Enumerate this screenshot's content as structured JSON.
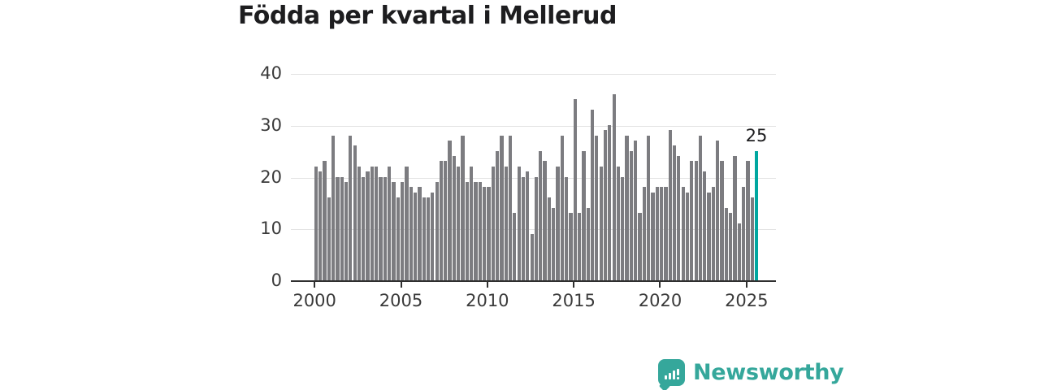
{
  "title": "Födda per kvartal i Mellerud",
  "chart_data": {
    "type": "bar",
    "title": "Födda per kvartal i Mellerud",
    "description": "Births per quarter in Mellerud, one bar per quarter from 2000 Q1 to 2025 Q3, last bar highlighted",
    "start_year": 2000,
    "unit": "quarter",
    "x_tick_labels": [
      "2000",
      "2005",
      "2010",
      "2015",
      "2020",
      "2025"
    ],
    "y_ticks": [
      0,
      10,
      20,
      30,
      40
    ],
    "ylim": [
      0,
      40
    ],
    "grid": true,
    "legend": "none",
    "values": [
      22,
      21,
      23,
      16,
      28,
      20,
      20,
      19,
      28,
      26,
      22,
      20,
      21,
      22,
      22,
      20,
      20,
      22,
      19,
      16,
      19,
      22,
      18,
      17,
      18,
      16,
      16,
      17,
      19,
      23,
      23,
      27,
      24,
      22,
      28,
      19,
      22,
      19,
      19,
      18,
      18,
      22,
      25,
      28,
      22,
      28,
      13,
      22,
      20,
      21,
      9,
      20,
      25,
      23,
      16,
      14,
      22,
      28,
      20,
      13,
      35,
      13,
      25,
      14,
      33,
      28,
      22,
      29,
      30,
      36,
      22,
      20,
      28,
      25,
      27,
      13,
      18,
      28,
      17,
      18,
      18,
      18,
      29,
      26,
      24,
      18,
      17,
      23,
      23,
      28,
      21,
      17,
      18,
      27,
      23,
      14,
      13,
      24,
      11,
      18,
      23,
      16,
      25
    ],
    "highlight_last_value": 25,
    "highlight_value_label": "25",
    "bar_color": "#7c7c80",
    "highlight_color": "#00a7a0"
  },
  "logo": {
    "text": "Newsworthy",
    "color": "#35a79b",
    "icon": "speech-bubble-bar-chart-icon"
  }
}
